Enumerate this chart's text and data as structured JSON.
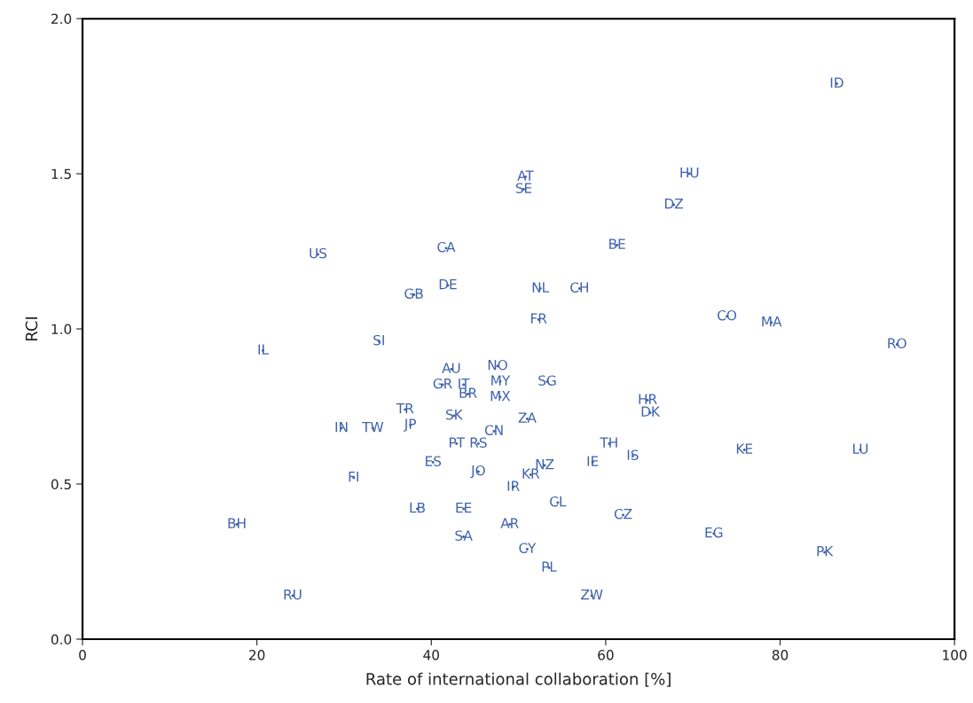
{
  "chart_data": {
    "type": "scatter",
    "xlabel": "Rate of international collaboration [%]",
    "ylabel": "RCI",
    "xlim": [
      0,
      100
    ],
    "xticks": [
      0,
      20,
      40,
      60,
      80,
      100
    ],
    "ylim": [
      0,
      2
    ],
    "yticks": [
      {
        "value": 0,
        "label": "0.0"
      },
      {
        "value": 0.5,
        "label": "0.5"
      },
      {
        "value": 1,
        "label": "1.0"
      },
      {
        "value": 1.5,
        "label": "1.5"
      },
      {
        "value": 2,
        "label": "2.0"
      }
    ],
    "grid": false,
    "marker": "none",
    "series": [
      {
        "color": "#3f62ad",
        "x": [
          86.5,
          69.6,
          50.8,
          50.6,
          67.8,
          41.7,
          61.3,
          27.0,
          41.9,
          52.5,
          57.0,
          38.0,
          52.3,
          73.9,
          79.0,
          34.0,
          93.4,
          20.7,
          42.3,
          47.6,
          47.9,
          53.3,
          41.3,
          43.7,
          44.2,
          47.9,
          64.8,
          65.1,
          37.0,
          42.6,
          51.0,
          29.7,
          33.3,
          37.6,
          47.2,
          42.9,
          45.4,
          60.4,
          63.1,
          75.9,
          89.2,
          40.2,
          53.0,
          58.5,
          45.4,
          51.4,
          31.1,
          49.4,
          54.5,
          38.4,
          43.7,
          62.0,
          17.7,
          49.0,
          72.4,
          43.7,
          85.1,
          51.0,
          53.5,
          24.1,
          58.4
        ],
        "values": [
          1.79,
          1.5,
          1.49,
          1.45,
          1.4,
          1.26,
          1.27,
          1.24,
          1.14,
          1.13,
          1.13,
          1.11,
          1.03,
          1.04,
          1.02,
          0.96,
          0.95,
          0.93,
          0.87,
          0.88,
          0.83,
          0.83,
          0.82,
          0.82,
          0.79,
          0.78,
          0.77,
          0.73,
          0.74,
          0.72,
          0.71,
          0.68,
          0.68,
          0.69,
          0.67,
          0.63,
          0.63,
          0.63,
          0.59,
          0.61,
          0.61,
          0.57,
          0.56,
          0.57,
          0.54,
          0.53,
          0.52,
          0.49,
          0.44,
          0.42,
          0.42,
          0.4,
          0.37,
          0.37,
          0.34,
          0.33,
          0.28,
          0.29,
          0.23,
          0.14,
          0.14
        ],
        "value_labels": [
          "ID",
          "HU",
          "AT",
          "SE",
          "DZ",
          "CA",
          "BE",
          "US",
          "DE",
          "NL",
          "CH",
          "GB",
          "FR",
          "CO",
          "MA",
          "SI",
          "RO",
          "IL",
          "AU",
          "NO",
          "MY",
          "SG",
          "GR",
          "IT",
          "BR",
          "MX",
          "HR",
          "DK",
          "TR",
          "SK",
          "ZA",
          "IN",
          "TW",
          "JP",
          "CN",
          "PT",
          "RS",
          "TH",
          "IS",
          "KE",
          "LU",
          "ES",
          "NZ",
          "IE",
          "JO",
          "KR",
          "FI",
          "IR",
          "CL",
          "LB",
          "EE",
          "CZ",
          "BH",
          "AR",
          "EG",
          "SA",
          "PK",
          "CY",
          "PL",
          "RU",
          "ZW"
        ]
      }
    ]
  }
}
